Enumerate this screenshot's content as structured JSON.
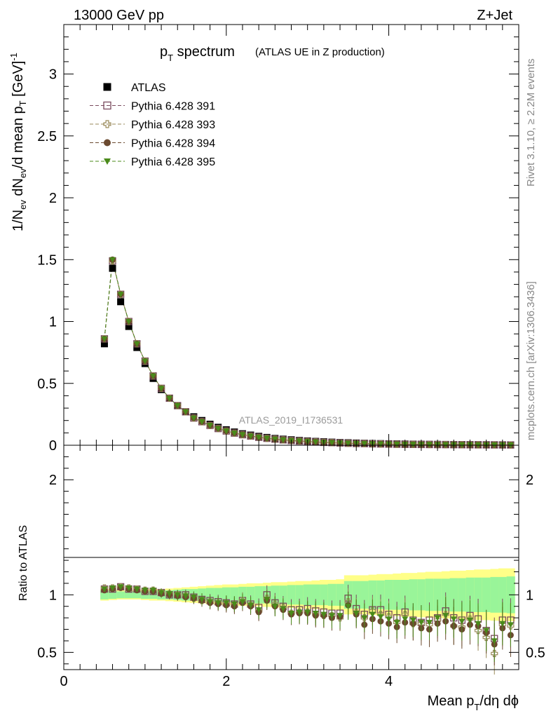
{
  "header": {
    "left": "13000 GeV pp",
    "right": "Z+Jet"
  },
  "title": {
    "main": "p",
    "main_sub": "T",
    "main_tail": " spectrum",
    "paren": "(ATLAS UE in Z production)"
  },
  "side": {
    "rivet": "Rivet 3.1.10, ≥ 2.2M events",
    "mcplots": "mcplots.cern.ch [arXiv:1306.3436]"
  },
  "watermark": "ATLAS_2019_I1736531",
  "axes": {
    "upper_ylabel": "1/N_ev dN_ev/d mean p_T [GeV]^-1",
    "lower_ylabel": "Ratio to ATLAS",
    "xlabel": "Mean p_T/dη dϕ"
  },
  "colors": {
    "atlas": "#000000",
    "p391": "#7a4a5e",
    "p393": "#9a8a5a",
    "p394": "#6b4a30",
    "p395": "#4a8a1a",
    "band_yellow": "#ffff88",
    "band_green": "#99f599"
  },
  "legend": [
    {
      "label": "ATLAS",
      "marker": "filled-square"
    },
    {
      "label": "Pythia 6.428 391",
      "marker": "open-square"
    },
    {
      "label": "Pythia 6.428 393",
      "marker": "open-cross"
    },
    {
      "label": "Pythia 6.428 394",
      "marker": "filled-circle"
    },
    {
      "label": "Pythia 6.428 395",
      "marker": "filled-triangle-down"
    }
  ],
  "chart_data": [
    {
      "type": "scatter",
      "panel": "main",
      "ylim": [
        0,
        3.4
      ],
      "xlim": [
        0,
        5.6
      ],
      "yticks": [
        "0",
        "0.5",
        "1",
        "1.5",
        "2",
        "2.5",
        "3"
      ],
      "xticks": [
        "0",
        "2",
        "4"
      ],
      "x": [
        0.5,
        0.6,
        0.7,
        0.8,
        0.9,
        1.0,
        1.1,
        1.2,
        1.3,
        1.4,
        1.5,
        1.6,
        1.7,
        1.8,
        1.9,
        2.0,
        2.1,
        2.2,
        2.3,
        2.4,
        2.5,
        2.6,
        2.7,
        2.8,
        2.9,
        3.0,
        3.1,
        3.2,
        3.3,
        3.4,
        3.5,
        3.6,
        3.7,
        3.8,
        3.9,
        4.0,
        4.1,
        4.2,
        4.3,
        4.4,
        4.5,
        4.6,
        4.7,
        4.8,
        4.9,
        5.0,
        5.1,
        5.2,
        5.3,
        5.4,
        5.5
      ],
      "series": [
        {
          "name": "ATLAS",
          "values": [
            0.82,
            1.43,
            1.16,
            0.96,
            0.79,
            0.66,
            0.54,
            0.45,
            0.38,
            0.32,
            0.27,
            0.23,
            0.2,
            0.17,
            0.145,
            0.125,
            0.107,
            0.093,
            0.082,
            0.072,
            0.063,
            0.055,
            0.049,
            0.044,
            0.039,
            0.035,
            0.031,
            0.028,
            0.025,
            0.022,
            0.02,
            0.018,
            0.016,
            0.014,
            0.013,
            0.012,
            0.011,
            0.01,
            0.009,
            0.008,
            0.0075,
            0.007,
            0.0064,
            0.0058,
            0.0053,
            0.0048,
            0.0044,
            0.004,
            0.0037,
            0.0034,
            0.0031
          ]
        },
        {
          "name": "Pythia 6.428 391",
          "values": [
            0.86,
            1.49,
            1.22,
            1.0,
            0.82,
            0.68,
            0.56,
            0.46,
            0.38,
            0.32,
            0.27,
            0.22,
            0.19,
            0.16,
            0.135,
            0.115,
            0.098,
            0.085,
            0.074,
            0.064,
            0.056,
            0.049,
            0.043,
            0.038,
            0.034,
            0.03,
            0.026,
            0.023,
            0.021,
            0.018,
            0.016,
            0.014,
            0.013,
            0.011,
            0.01,
            0.009,
            0.008,
            0.007,
            0.0067,
            0.006,
            0.0055,
            0.005,
            0.0046,
            0.0042,
            0.0038,
            0.0034,
            0.003,
            0.0027,
            0.0025,
            0.0023,
            0.0021
          ]
        },
        {
          "name": "Pythia 6.428 393",
          "values": [
            0.86,
            1.49,
            1.22,
            1.0,
            0.82,
            0.68,
            0.56,
            0.46,
            0.38,
            0.32,
            0.27,
            0.22,
            0.19,
            0.16,
            0.135,
            0.115,
            0.098,
            0.085,
            0.074,
            0.064,
            0.056,
            0.049,
            0.043,
            0.038,
            0.034,
            0.03,
            0.026,
            0.023,
            0.021,
            0.018,
            0.016,
            0.014,
            0.013,
            0.011,
            0.01,
            0.009,
            0.008,
            0.007,
            0.0067,
            0.006,
            0.0055,
            0.005,
            0.0046,
            0.0042,
            0.0038,
            0.0034,
            0.003,
            0.0027,
            0.0025,
            0.0023,
            0.0021
          ]
        },
        {
          "name": "Pythia 6.428 394",
          "values": [
            0.86,
            1.5,
            1.22,
            1.0,
            0.82,
            0.68,
            0.56,
            0.46,
            0.38,
            0.32,
            0.27,
            0.22,
            0.19,
            0.16,
            0.135,
            0.115,
            0.098,
            0.085,
            0.074,
            0.064,
            0.056,
            0.049,
            0.043,
            0.038,
            0.034,
            0.03,
            0.026,
            0.023,
            0.021,
            0.018,
            0.016,
            0.014,
            0.013,
            0.011,
            0.01,
            0.009,
            0.008,
            0.007,
            0.0067,
            0.006,
            0.0055,
            0.005,
            0.0046,
            0.0042,
            0.0038,
            0.0034,
            0.003,
            0.0027,
            0.0025,
            0.0023,
            0.0021
          ]
        },
        {
          "name": "Pythia 6.428 395",
          "values": [
            0.86,
            1.5,
            1.22,
            1.0,
            0.82,
            0.68,
            0.56,
            0.46,
            0.38,
            0.32,
            0.27,
            0.22,
            0.19,
            0.16,
            0.135,
            0.115,
            0.098,
            0.085,
            0.074,
            0.064,
            0.056,
            0.049,
            0.043,
            0.038,
            0.034,
            0.03,
            0.026,
            0.023,
            0.021,
            0.018,
            0.016,
            0.014,
            0.013,
            0.011,
            0.01,
            0.009,
            0.008,
            0.007,
            0.0067,
            0.006,
            0.0055,
            0.005,
            0.0046,
            0.0042,
            0.0038,
            0.0034,
            0.003,
            0.0027,
            0.0025,
            0.0023,
            0.0021
          ]
        }
      ]
    },
    {
      "type": "scatter",
      "panel": "ratio",
      "ylim": [
        0.35,
        2.3
      ],
      "xlim": [
        0,
        5.6
      ],
      "yticks": [
        "0.5",
        "1",
        "2"
      ],
      "x": [
        0.5,
        0.6,
        0.7,
        0.8,
        0.9,
        1.0,
        1.1,
        1.2,
        1.3,
        1.4,
        1.5,
        1.6,
        1.7,
        1.8,
        1.9,
        2.0,
        2.1,
        2.2,
        2.3,
        2.4,
        2.5,
        2.6,
        2.7,
        2.8,
        2.9,
        3.0,
        3.1,
        3.2,
        3.3,
        3.4,
        3.5,
        3.6,
        3.7,
        3.8,
        3.9,
        4.0,
        4.1,
        4.2,
        4.3,
        4.4,
        4.5,
        4.6,
        4.7,
        4.8,
        4.9,
        5.0,
        5.1,
        5.2,
        5.3,
        5.4,
        5.5
      ],
      "band_yellow_half": [
        0.05,
        0.045,
        0.04,
        0.04,
        0.04,
        0.045,
        0.05,
        0.05,
        0.055,
        0.06,
        0.065,
        0.07,
        0.075,
        0.08,
        0.085,
        0.09,
        0.09,
        0.095,
        0.1,
        0.1,
        0.105,
        0.11,
        0.11,
        0.115,
        0.12,
        0.12,
        0.125,
        0.13,
        0.13,
        0.135,
        0.17,
        0.17,
        0.17,
        0.175,
        0.18,
        0.18,
        0.185,
        0.19,
        0.19,
        0.195,
        0.2,
        0.2,
        0.205,
        0.21,
        0.21,
        0.215,
        0.22,
        0.22,
        0.225,
        0.23,
        0.23
      ],
      "band_green_half": [
        0.04,
        0.035,
        0.03,
        0.03,
        0.03,
        0.035,
        0.035,
        0.04,
        0.04,
        0.045,
        0.05,
        0.05,
        0.055,
        0.06,
        0.06,
        0.065,
        0.065,
        0.07,
        0.07,
        0.075,
        0.075,
        0.08,
        0.08,
        0.085,
        0.085,
        0.09,
        0.09,
        0.09,
        0.095,
        0.095,
        0.12,
        0.12,
        0.12,
        0.125,
        0.125,
        0.13,
        0.13,
        0.13,
        0.135,
        0.135,
        0.14,
        0.14,
        0.14,
        0.145,
        0.145,
        0.15,
        0.15,
        0.15,
        0.155,
        0.155,
        0.16
      ],
      "series": [
        {
          "name": "Pythia 6.428 391",
          "values": [
            1.05,
            1.05,
            1.07,
            1.05,
            1.05,
            1.03,
            1.03,
            1.02,
            1.0,
            1.0,
            1.0,
            0.98,
            0.96,
            0.95,
            0.94,
            0.93,
            0.92,
            0.95,
            0.92,
            0.89,
            1.0,
            0.93,
            0.9,
            0.87,
            0.87,
            0.88,
            0.86,
            0.85,
            0.84,
            0.84,
            0.97,
            0.88,
            0.83,
            0.87,
            0.87,
            0.83,
            0.8,
            0.85,
            0.78,
            0.76,
            0.78,
            0.8,
            0.86,
            0.8,
            0.78,
            0.82,
            0.79,
            0.69,
            0.62,
            0.78,
            0.78
          ]
        },
        {
          "name": "Pythia 6.428 393",
          "values": [
            1.06,
            1.06,
            1.07,
            1.06,
            1.05,
            1.04,
            1.04,
            1.02,
            1.01,
            1.0,
            0.99,
            0.97,
            0.95,
            0.94,
            0.93,
            0.92,
            0.91,
            0.95,
            0.91,
            0.86,
            0.97,
            0.92,
            0.89,
            0.84,
            0.85,
            0.85,
            0.83,
            0.82,
            0.82,
            0.8,
            0.94,
            0.85,
            0.8,
            0.86,
            0.83,
            0.81,
            0.76,
            0.83,
            0.75,
            0.75,
            0.74,
            0.78,
            0.83,
            0.73,
            0.72,
            0.79,
            0.69,
            0.63,
            0.49,
            0.74,
            0.73
          ]
        },
        {
          "name": "Pythia 6.428 394",
          "values": [
            1.04,
            1.05,
            1.06,
            1.05,
            1.04,
            1.03,
            1.03,
            1.01,
            1.0,
            0.99,
            0.98,
            0.97,
            0.95,
            0.93,
            0.92,
            0.91,
            0.9,
            0.93,
            0.9,
            0.85,
            0.95,
            0.9,
            0.87,
            0.83,
            0.84,
            0.84,
            0.82,
            0.82,
            0.8,
            0.81,
            0.91,
            0.83,
            0.74,
            0.79,
            0.77,
            0.75,
            0.72,
            0.76,
            0.75,
            0.71,
            0.7,
            0.75,
            0.77,
            0.73,
            0.7,
            0.74,
            0.73,
            0.67,
            0.57,
            0.71,
            0.65
          ]
        },
        {
          "name": "Pythia 6.428 395",
          "values": [
            1.05,
            1.06,
            1.07,
            1.06,
            1.05,
            1.04,
            1.04,
            1.02,
            1.01,
            1.0,
            0.99,
            0.98,
            0.96,
            0.94,
            0.93,
            0.93,
            0.92,
            0.94,
            0.91,
            0.87,
            0.96,
            0.9,
            0.88,
            0.84,
            0.85,
            0.85,
            0.84,
            0.83,
            0.82,
            0.82,
            0.9,
            0.84,
            0.8,
            0.83,
            0.81,
            0.79,
            0.76,
            0.79,
            0.78,
            0.76,
            0.76,
            0.8,
            0.82,
            0.79,
            0.77,
            0.78,
            0.75,
            0.69,
            0.6,
            0.75,
            0.74
          ]
        }
      ]
    }
  ]
}
